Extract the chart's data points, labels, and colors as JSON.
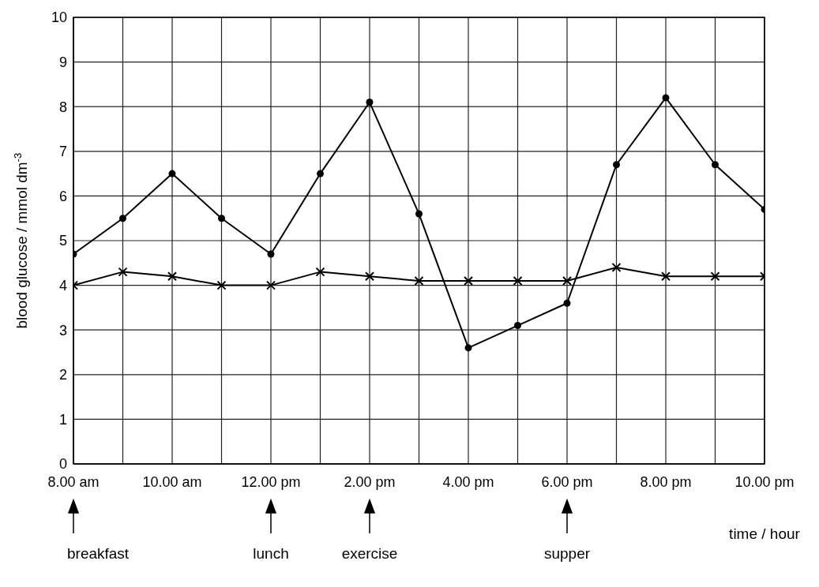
{
  "chart_data": {
    "type": "line",
    "ylabel": "blood glucose / mmol dm$^{-3}$",
    "xlabel": "time / hour",
    "categories": [
      "8.00 am",
      null,
      "10.00 am",
      null,
      "12.00 pm",
      null,
      "2.00 pm",
      null,
      "4.00 pm",
      null,
      "6.00 pm",
      null,
      "8.00 pm",
      null,
      "10.00 pm"
    ],
    "series": [
      {
        "color": "#000000",
        "marker": "circle",
        "values": [
          4.7,
          5.5,
          6.5,
          5.5,
          4.7,
          6.5,
          8.1,
          5.6,
          2.6,
          3.1,
          3.6,
          6.7,
          8.2,
          6.7,
          5.7
        ]
      },
      {
        "color": "#000000",
        "marker": "cross",
        "values": [
          4.0,
          4.3,
          4.2,
          4.0,
          4.0,
          4.3,
          4.2,
          4.1,
          4.1,
          4.1,
          4.1,
          4.4,
          4.2,
          4.2,
          4.2
        ]
      }
    ],
    "ylim": [
      0,
      10
    ],
    "yticks": [
      0,
      1,
      2,
      3,
      4,
      5,
      6,
      7,
      8,
      9,
      10
    ],
    "grid": true,
    "legend": false,
    "line_style": "solid",
    "annotations": [
      "breakfast",
      "lunch",
      "exercise",
      "supper"
    ]
  }
}
